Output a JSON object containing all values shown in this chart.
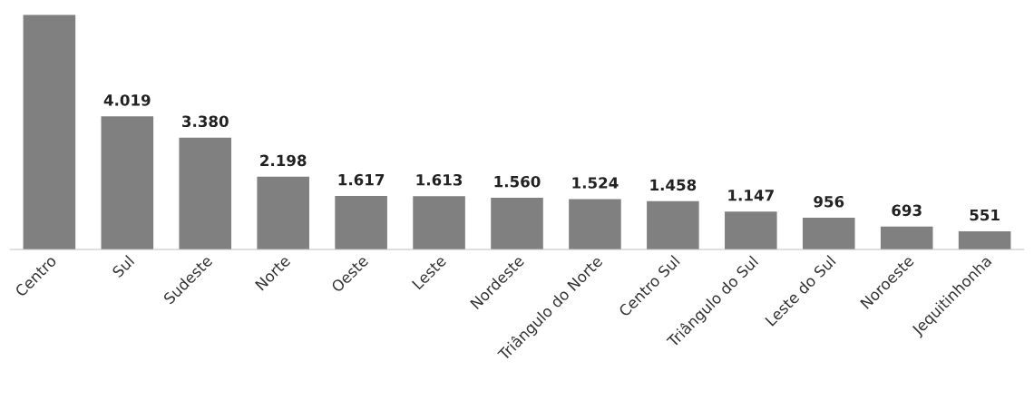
{
  "chart_data": {
    "type": "bar",
    "categories": [
      "Centro",
      "Sul",
      "Sudeste",
      "Norte",
      "Oeste",
      "Leste",
      "Nordeste",
      "Triângulo do Norte",
      "Centro Sul",
      "Triângulo do Sul",
      "Leste do Sul",
      "Noroeste",
      "Jequitinhonha"
    ],
    "values": [
      7090,
      4019,
      3380,
      2198,
      1617,
      1613,
      1560,
      1524,
      1458,
      1147,
      956,
      693,
      551
    ],
    "value_labels": [
      null,
      "4.019",
      "3.380",
      "2.198",
      "1.617",
      "1.613",
      "1.560",
      "1.524",
      "1.458",
      "1.147",
      "956",
      "693",
      "551"
    ],
    "color": "#808080",
    "ylim": [
      0,
      7090
    ],
    "tick_labels": "x",
    "grid": false,
    "legend": false
  }
}
